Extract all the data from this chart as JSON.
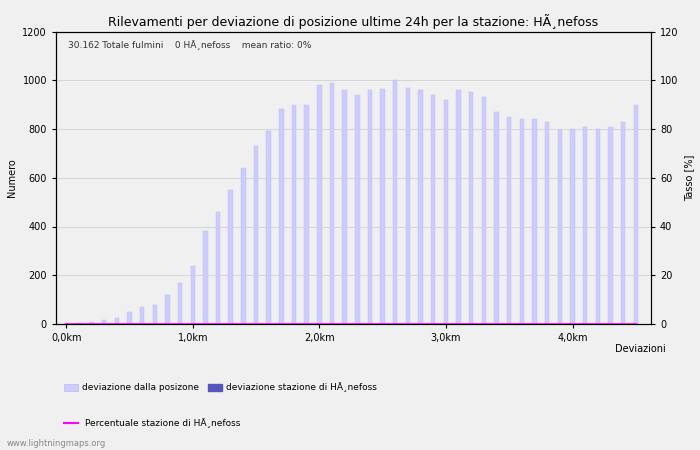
{
  "title": "Rilevamenti per deviazione di posizione ultime 24h per la stazione: HÃ¸nefoss",
  "subtitle": "30.162 Totale fulmini    0 HÃ¸nefoss    mean ratio: 0%",
  "ylabel_left": "Numero",
  "ylabel_right": "Tasso [%]",
  "xlabel": "Deviazioni",
  "watermark": "www.lightningmaps.org",
  "ylim_left": [
    0,
    1200
  ],
  "ylim_right": [
    0,
    120
  ],
  "yticks_left": [
    0,
    200,
    400,
    600,
    800,
    1000,
    1200
  ],
  "yticks_right": [
    0,
    20,
    40,
    60,
    80,
    100,
    120
  ],
  "bar_color": "#ccccff",
  "bar_edge_color": "#bbbbee",
  "station_bar_color": "#5555bb",
  "line_color": "#ff00ff",
  "x_positions": [
    0.0,
    0.1,
    0.2,
    0.3,
    0.4,
    0.5,
    0.6,
    0.7,
    0.8,
    0.9,
    1.0,
    1.1,
    1.2,
    1.3,
    1.4,
    1.5,
    1.6,
    1.7,
    1.8,
    1.9,
    2.0,
    2.1,
    2.2,
    2.3,
    2.4,
    2.5,
    2.6,
    2.7,
    2.8,
    2.9,
    3.0,
    3.1,
    3.2,
    3.3,
    3.4,
    3.5,
    3.6,
    3.7,
    3.8,
    3.9,
    4.0,
    4.1,
    4.2,
    4.3,
    4.4,
    4.5
  ],
  "bar_values": [
    2,
    5,
    10,
    15,
    25,
    50,
    70,
    80,
    120,
    170,
    240,
    380,
    460,
    550,
    640,
    730,
    790,
    880,
    900,
    900,
    980,
    990,
    960,
    940,
    960,
    965,
    1000,
    970,
    960,
    940,
    920,
    960,
    950,
    930,
    870,
    850,
    840,
    840,
    830,
    795,
    800,
    810,
    800,
    810,
    830,
    900
  ],
  "station_bar_values": [
    0,
    0,
    0,
    0,
    0,
    0,
    0,
    0,
    0,
    0,
    0,
    0,
    0,
    0,
    0,
    0,
    0,
    0,
    0,
    0,
    0,
    0,
    0,
    0,
    0,
    0,
    0,
    0,
    0,
    0,
    0,
    0,
    0,
    0,
    0,
    0,
    0,
    0,
    0,
    0,
    0,
    0,
    0,
    0,
    0,
    0
  ],
  "mean_ratio_values": [
    0,
    0,
    0,
    0,
    0,
    0,
    0,
    0,
    0,
    0,
    0,
    0,
    0,
    0,
    0,
    0,
    0,
    0,
    0,
    0,
    0,
    0,
    0,
    0,
    0,
    0,
    0,
    0,
    0,
    0,
    0,
    0,
    0,
    0,
    0,
    0,
    0,
    0,
    0,
    0,
    0,
    0,
    0,
    0,
    0,
    0
  ],
  "xtick_positions": [
    0.0,
    1.0,
    2.0,
    3.0,
    4.0
  ],
  "xtick_labels": [
    "0,0km",
    "1,0km",
    "2,0km",
    "3,0km",
    "4,0km"
  ],
  "legend_label_bar": "deviazione dalla posizone",
  "legend_label_station": "deviazione stazione di HÃ¸nefoss",
  "legend_label_line": "Percentuale stazione di HÃ¸nefoss",
  "bg_color": "#f0f0f0",
  "grid_color": "#cccccc",
  "font_size": 7,
  "title_font_size": 9
}
